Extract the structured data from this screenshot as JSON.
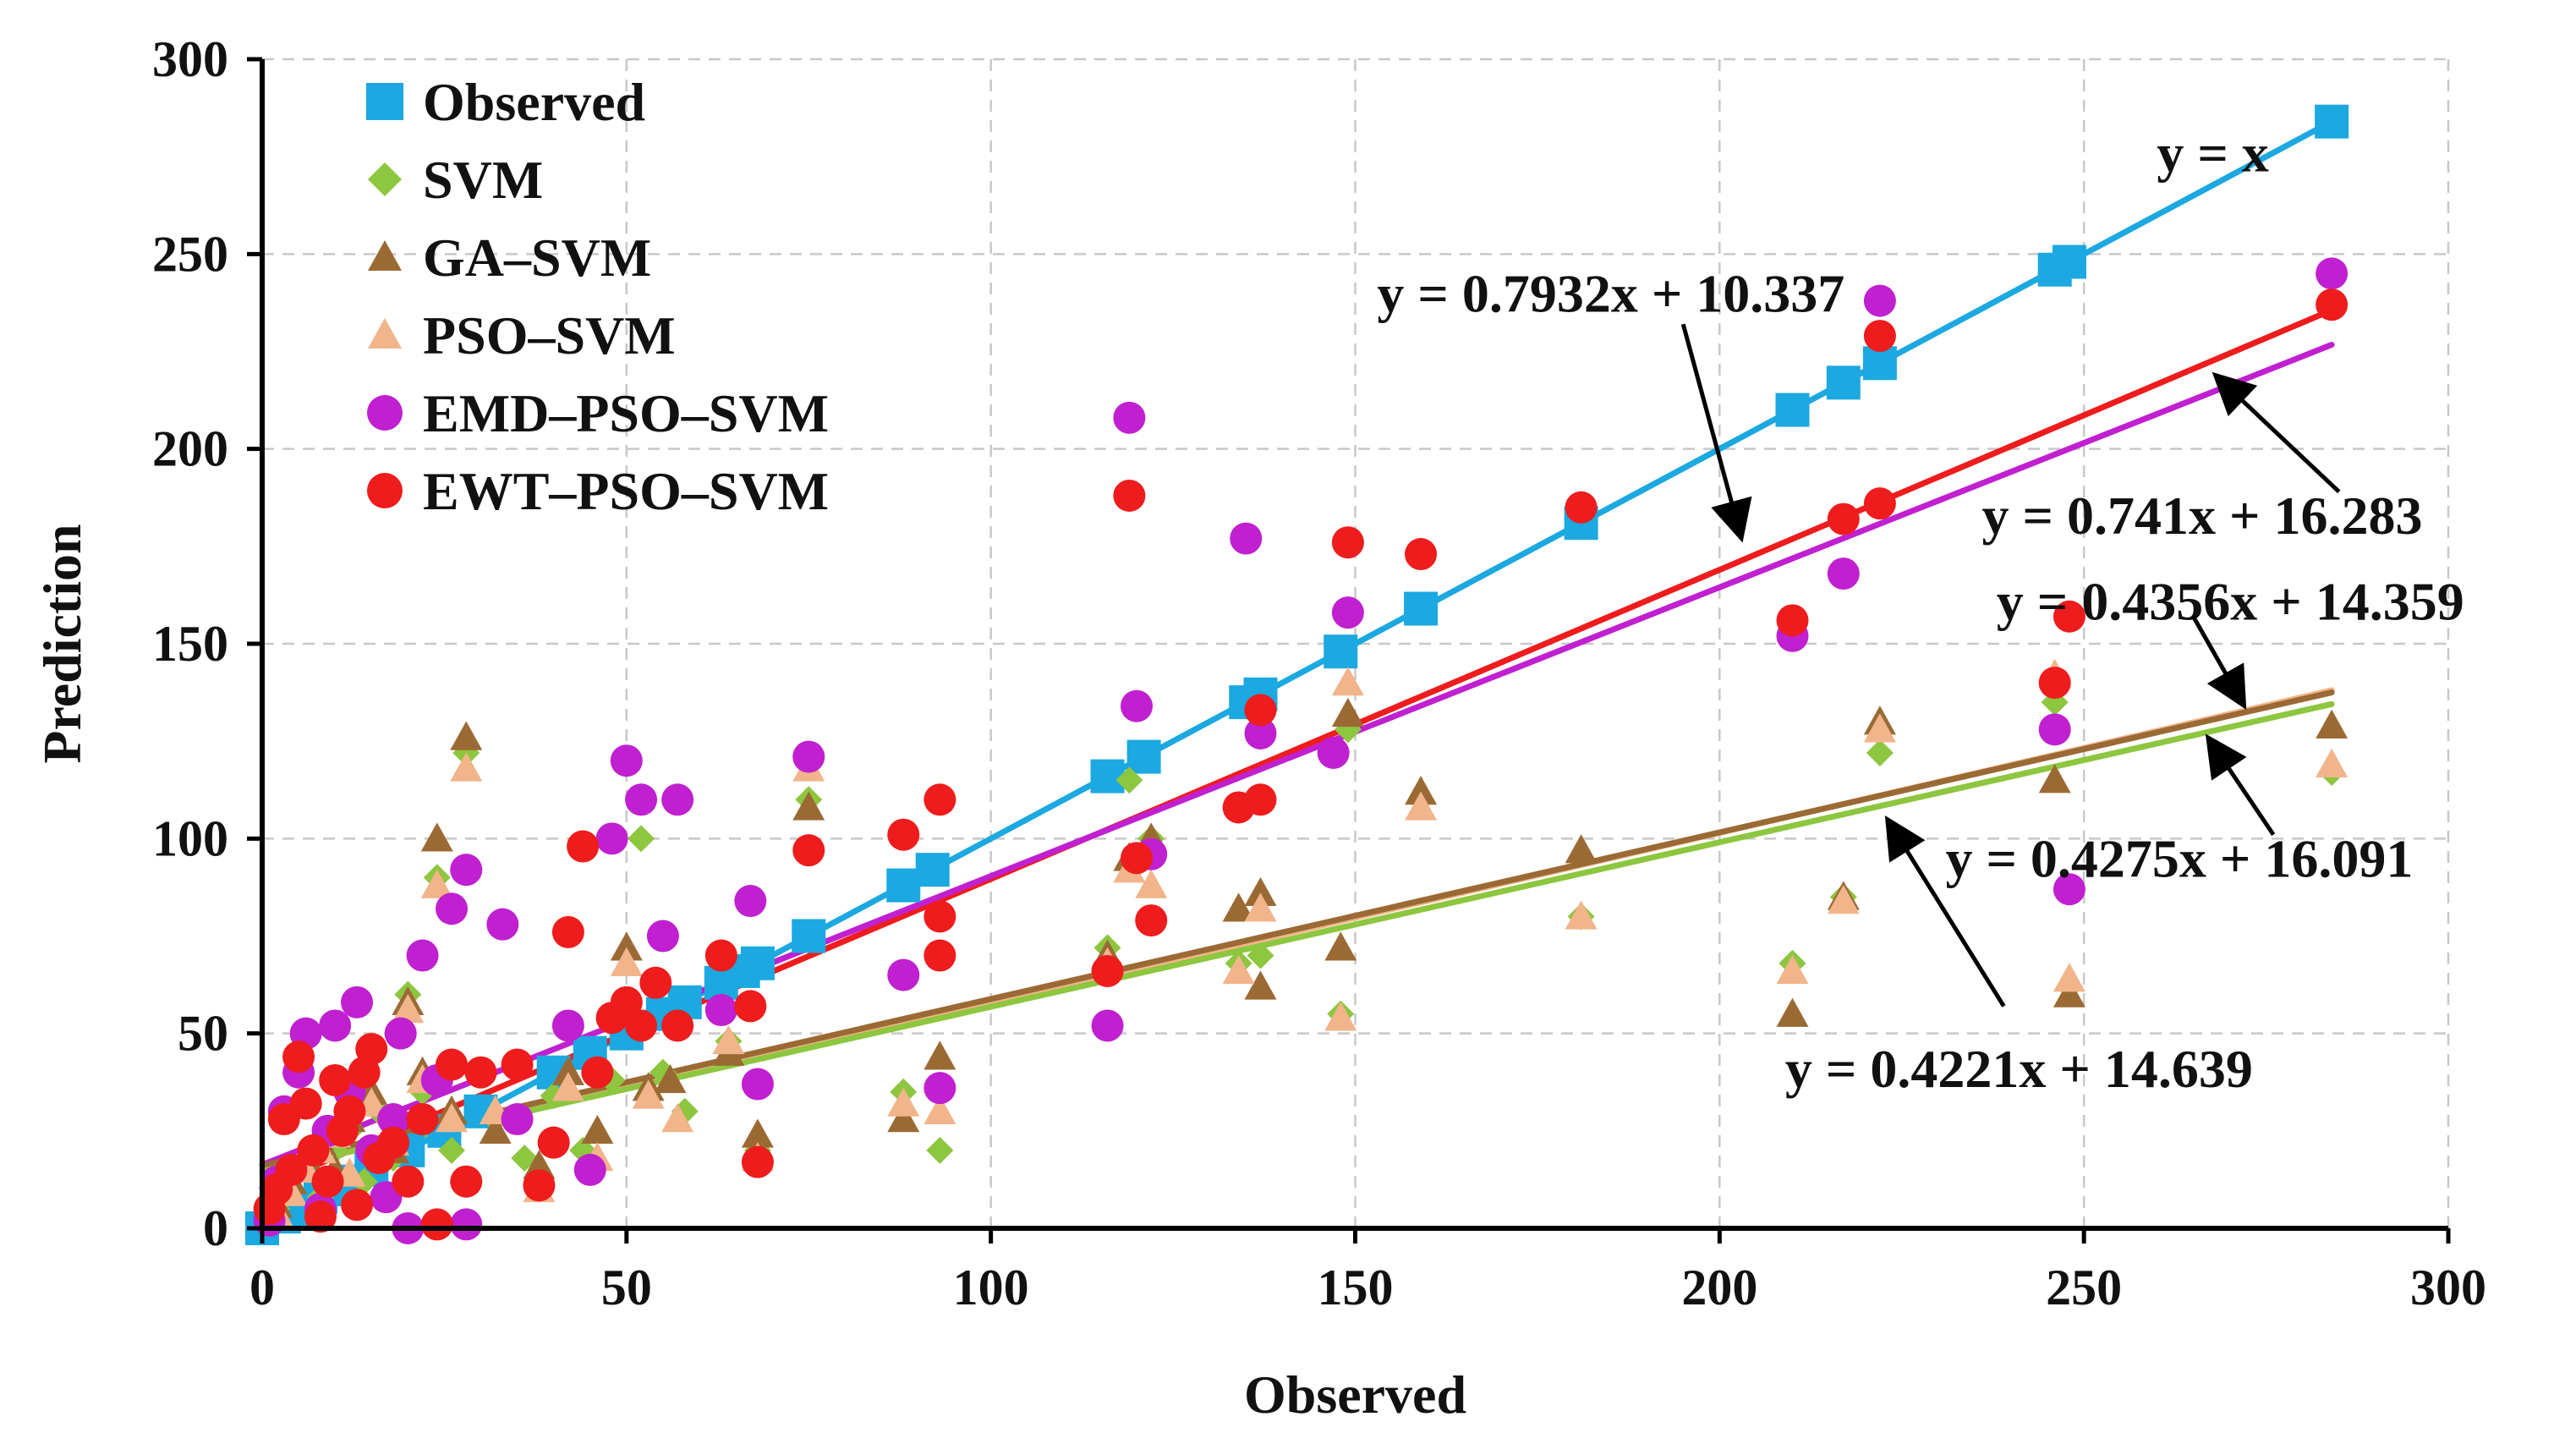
{
  "chart_data": {
    "type": "scatter",
    "title": "",
    "xlabel": "Observed",
    "ylabel": "Prediction",
    "xlim": [
      0,
      300
    ],
    "ylim": [
      0,
      300
    ],
    "xticks": [
      0,
      50,
      100,
      150,
      200,
      250,
      300
    ],
    "yticks": [
      0,
      50,
      100,
      150,
      200,
      250,
      300
    ],
    "grid": true,
    "legend_position": "top-left",
    "series": [
      {
        "name": "Observed",
        "marker": "square",
        "color": "#1ca8e0",
        "points": [
          [
            0,
            0
          ],
          [
            3,
            3
          ],
          [
            5,
            5
          ],
          [
            8,
            8
          ],
          [
            10,
            10
          ],
          [
            12,
            12
          ],
          [
            15,
            15
          ],
          [
            20,
            20
          ],
          [
            25,
            25
          ],
          [
            30,
            30
          ],
          [
            40,
            40
          ],
          [
            45,
            45
          ],
          [
            50,
            50
          ],
          [
            55,
            55
          ],
          [
            58,
            58
          ],
          [
            63,
            63
          ],
          [
            66,
            66
          ],
          [
            68,
            68
          ],
          [
            75,
            75
          ],
          [
            88,
            88
          ],
          [
            92,
            92
          ],
          [
            116,
            116
          ],
          [
            121,
            121
          ],
          [
            135,
            135
          ],
          [
            137,
            137
          ],
          [
            148,
            148
          ],
          [
            159,
            159
          ],
          [
            181,
            181
          ],
          [
            210,
            210
          ],
          [
            217,
            217
          ],
          [
            222,
            222
          ],
          [
            246,
            246
          ],
          [
            248,
            248
          ],
          [
            284,
            284
          ]
        ]
      },
      {
        "name": "SVM",
        "marker": "diamond",
        "color": "#8dc63f",
        "points": [
          [
            2,
            5
          ],
          [
            4,
            10
          ],
          [
            6,
            16
          ],
          [
            8,
            8
          ],
          [
            10,
            20
          ],
          [
            12,
            25
          ],
          [
            14,
            12
          ],
          [
            16,
            30
          ],
          [
            18,
            18
          ],
          [
            20,
            60
          ],
          [
            22,
            35
          ],
          [
            24,
            90
          ],
          [
            26,
            20
          ],
          [
            28,
            122
          ],
          [
            32,
            28
          ],
          [
            36,
            18
          ],
          [
            40,
            34
          ],
          [
            44,
            20
          ],
          [
            48,
            38
          ],
          [
            52,
            100
          ],
          [
            55,
            40
          ],
          [
            58,
            30
          ],
          [
            64,
            48
          ],
          [
            68,
            20
          ],
          [
            75,
            110
          ],
          [
            88,
            35
          ],
          [
            93,
            20
          ],
          [
            116,
            72
          ],
          [
            119,
            115
          ],
          [
            122,
            100
          ],
          [
            134,
            68
          ],
          [
            137,
            70
          ],
          [
            148,
            55
          ],
          [
            149,
            128
          ],
          [
            159,
            110
          ],
          [
            181,
            80
          ],
          [
            210,
            68
          ],
          [
            217,
            85
          ],
          [
            222,
            122
          ],
          [
            246,
            135
          ],
          [
            248,
            62
          ],
          [
            284,
            117
          ]
        ]
      },
      {
        "name": "GA–SVM",
        "marker": "triangle",
        "color": "#9b6a34",
        "points": [
          [
            2,
            6
          ],
          [
            4,
            12
          ],
          [
            6,
            18
          ],
          [
            8,
            22
          ],
          [
            10,
            15
          ],
          [
            12,
            28
          ],
          [
            15,
            35
          ],
          [
            18,
            20
          ],
          [
            20,
            58
          ],
          [
            22,
            40
          ],
          [
            24,
            100
          ],
          [
            26,
            30
          ],
          [
            28,
            126
          ],
          [
            32,
            25
          ],
          [
            38,
            16
          ],
          [
            42,
            40
          ],
          [
            46,
            25
          ],
          [
            50,
            72
          ],
          [
            53,
            36
          ],
          [
            56,
            38
          ],
          [
            64,
            45
          ],
          [
            68,
            24
          ],
          [
            75,
            108
          ],
          [
            88,
            28
          ],
          [
            93,
            44
          ],
          [
            116,
            70
          ],
          [
            119,
            95
          ],
          [
            122,
            100
          ],
          [
            134,
            82
          ],
          [
            137,
            62
          ],
          [
            137,
            86
          ],
          [
            148,
            72
          ],
          [
            149,
            132
          ],
          [
            159,
            112
          ],
          [
            181,
            97
          ],
          [
            210,
            55
          ],
          [
            217,
            85
          ],
          [
            222,
            130
          ],
          [
            246,
            115
          ],
          [
            248,
            60
          ],
          [
            284,
            129
          ]
        ]
      },
      {
        "name": "PSO–SVM",
        "marker": "triangle",
        "color": "#f2b48a",
        "points": [
          [
            2,
            4
          ],
          [
            4,
            9
          ],
          [
            6,
            15
          ],
          [
            8,
            20
          ],
          [
            10,
            24
          ],
          [
            12,
            14
          ],
          [
            15,
            32
          ],
          [
            18,
            22
          ],
          [
            20,
            56
          ],
          [
            22,
            38
          ],
          [
            24,
            88
          ],
          [
            26,
            28
          ],
          [
            28,
            118
          ],
          [
            32,
            30
          ],
          [
            38,
            10
          ],
          [
            42,
            36
          ],
          [
            46,
            18
          ],
          [
            50,
            68
          ],
          [
            53,
            34
          ],
          [
            57,
            28
          ],
          [
            64,
            48
          ],
          [
            68,
            18
          ],
          [
            75,
            118
          ],
          [
            88,
            32
          ],
          [
            93,
            30
          ],
          [
            116,
            68
          ],
          [
            119,
            92
          ],
          [
            122,
            88
          ],
          [
            134,
            66
          ],
          [
            137,
            82
          ],
          [
            148,
            54
          ],
          [
            149,
            140
          ],
          [
            159,
            108
          ],
          [
            181,
            80
          ],
          [
            210,
            66
          ],
          [
            217,
            84
          ],
          [
            222,
            128
          ],
          [
            246,
            142
          ],
          [
            248,
            64
          ],
          [
            284,
            119
          ]
        ]
      },
      {
        "name": "EMD–PSO–SVM",
        "marker": "circle",
        "color": "#c020d0",
        "points": [
          [
            1,
            2
          ],
          [
            2,
            12
          ],
          [
            3,
            30
          ],
          [
            5,
            40
          ],
          [
            6,
            50
          ],
          [
            8,
            5
          ],
          [
            9,
            25
          ],
          [
            10,
            52
          ],
          [
            12,
            35
          ],
          [
            13,
            58
          ],
          [
            15,
            20
          ],
          [
            17,
            8
          ],
          [
            18,
            28
          ],
          [
            19,
            50
          ],
          [
            20,
            0
          ],
          [
            22,
            70
          ],
          [
            24,
            38
          ],
          [
            26,
            82
          ],
          [
            28,
            92
          ],
          [
            28,
            1
          ],
          [
            33,
            78
          ],
          [
            35,
            28
          ],
          [
            42,
            52
          ],
          [
            45,
            15
          ],
          [
            48,
            100
          ],
          [
            50,
            120
          ],
          [
            52,
            110
          ],
          [
            55,
            75
          ],
          [
            57,
            110
          ],
          [
            63,
            56
          ],
          [
            67,
            84
          ],
          [
            68,
            37
          ],
          [
            75,
            121
          ],
          [
            88,
            65
          ],
          [
            93,
            36
          ],
          [
            116,
            52
          ],
          [
            119,
            208
          ],
          [
            120,
            134
          ],
          [
            122,
            96
          ],
          [
            135,
            177
          ],
          [
            137,
            127
          ],
          [
            147,
            122
          ],
          [
            149,
            158
          ],
          [
            210,
            152
          ],
          [
            217,
            168
          ],
          [
            222,
            238
          ],
          [
            246,
            128
          ],
          [
            248,
            87
          ],
          [
            284,
            245
          ]
        ]
      },
      {
        "name": "EWT–PSO–SVM",
        "marker": "circle",
        "color": "#ee1c1c",
        "points": [
          [
            1,
            5
          ],
          [
            2,
            10
          ],
          [
            3,
            28
          ],
          [
            4,
            15
          ],
          [
            5,
            44
          ],
          [
            6,
            32
          ],
          [
            7,
            20
          ],
          [
            8,
            3
          ],
          [
            9,
            12
          ],
          [
            10,
            38
          ],
          [
            11,
            25
          ],
          [
            12,
            30
          ],
          [
            13,
            6
          ],
          [
            14,
            40
          ],
          [
            15,
            46
          ],
          [
            16,
            18
          ],
          [
            18,
            22
          ],
          [
            20,
            12
          ],
          [
            22,
            28
          ],
          [
            24,
            1
          ],
          [
            26,
            42
          ],
          [
            28,
            12
          ],
          [
            30,
            40
          ],
          [
            35,
            42
          ],
          [
            38,
            11
          ],
          [
            40,
            22
          ],
          [
            42,
            76
          ],
          [
            44,
            98
          ],
          [
            46,
            40
          ],
          [
            48,
            54
          ],
          [
            50,
            58
          ],
          [
            52,
            52
          ],
          [
            54,
            63
          ],
          [
            57,
            52
          ],
          [
            63,
            70
          ],
          [
            67,
            57
          ],
          [
            68,
            17
          ],
          [
            75,
            97
          ],
          [
            88,
            101
          ],
          [
            93,
            80
          ],
          [
            93,
            70
          ],
          [
            93,
            110
          ],
          [
            116,
            66
          ],
          [
            119,
            188
          ],
          [
            120,
            95
          ],
          [
            122,
            79
          ],
          [
            134,
            108
          ],
          [
            137,
            110
          ],
          [
            137,
            133
          ],
          [
            149,
            176
          ],
          [
            159,
            173
          ],
          [
            181,
            185
          ],
          [
            210,
            156
          ],
          [
            217,
            182
          ],
          [
            222,
            186
          ],
          [
            222,
            229
          ],
          [
            246,
            140
          ],
          [
            248,
            157
          ],
          [
            284,
            237
          ]
        ]
      }
    ],
    "fit_lines": [
      {
        "name": "Observed",
        "label": "y = x",
        "slope": 1,
        "intercept": 0,
        "x_range": [
          0,
          284
        ],
        "color": "#1ca8e0"
      },
      {
        "name": "EWT–PSO–SVM",
        "label": "y = 0.7932x + 10.337",
        "slope": 0.7932,
        "intercept": 10.337,
        "x_range": [
          0,
          284
        ],
        "color": "#ee1c1c"
      },
      {
        "name": "EMD–PSO–SVM",
        "label": "y = 0.741x + 16.283",
        "slope": 0.741,
        "intercept": 16.283,
        "x_range": [
          0,
          284
        ],
        "color": "#c020d0"
      },
      {
        "name": "PSO–SVM",
        "label": "y = 0.4356x + 14.359",
        "slope": 0.4356,
        "intercept": 14.359,
        "x_range": [
          0,
          284
        ],
        "color": "#f2b48a"
      },
      {
        "name": "GA–SVM",
        "label": "y = 0.4275x + 16.091",
        "slope": 0.4275,
        "intercept": 16.091,
        "x_range": [
          0,
          284
        ],
        "color": "#9b6a34"
      },
      {
        "name": "SVM",
        "label": "y = 0.4221x + 14.639",
        "slope": 0.4221,
        "intercept": 14.639,
        "x_range": [
          0,
          284
        ],
        "color": "#8dc63f"
      }
    ],
    "annotations": [
      {
        "text": "y = x",
        "at": [
          260,
          276
        ]
      },
      {
        "text": "y = 0.7932x + 10.337",
        "at": [
          153,
          240
        ],
        "arrow_from": [
          195,
          232
        ],
        "arrow_to": [
          203,
          177
        ]
      },
      {
        "text": "y = 0.741x + 16.283",
        "at": [
          236,
          183
        ],
        "arrow_from": [
          285,
          189
        ],
        "arrow_to": [
          268,
          219
        ]
      },
      {
        "text": "y = 0.4356x + 14.359",
        "at": [
          238,
          161
        ],
        "arrow_from": [
          265,
          157
        ],
        "arrow_to": [
          272,
          134
        ]
      },
      {
        "text": "y = 0.4275x + 16.091",
        "at": [
          231,
          95
        ],
        "arrow_from": [
          276,
          101
        ],
        "arrow_to": [
          267,
          126
        ]
      },
      {
        "text": "y = 0.4221x + 14.639",
        "at": [
          209,
          41
        ],
        "arrow_from": [
          239,
          57
        ],
        "arrow_to": [
          223,
          105
        ]
      }
    ]
  }
}
